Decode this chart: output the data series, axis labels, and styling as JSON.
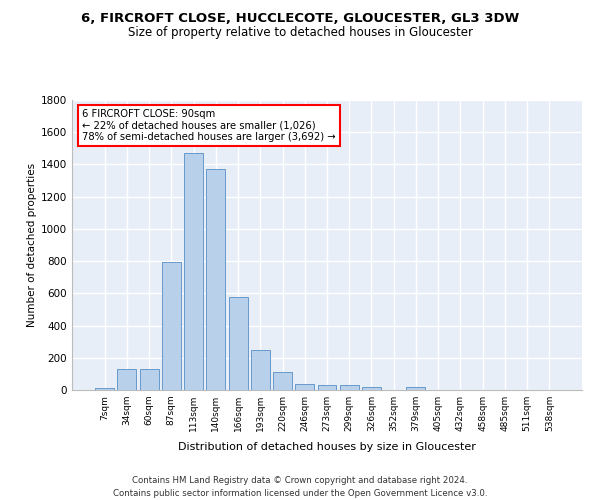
{
  "title1": "6, FIRCROFT CLOSE, HUCCLECOTE, GLOUCESTER, GL3 3DW",
  "title2": "Size of property relative to detached houses in Gloucester",
  "xlabel": "Distribution of detached houses by size in Gloucester",
  "ylabel": "Number of detached properties",
  "categories": [
    "7sqm",
    "34sqm",
    "60sqm",
    "87sqm",
    "113sqm",
    "140sqm",
    "166sqm",
    "193sqm",
    "220sqm",
    "246sqm",
    "273sqm",
    "299sqm",
    "326sqm",
    "352sqm",
    "379sqm",
    "405sqm",
    "432sqm",
    "458sqm",
    "485sqm",
    "511sqm",
    "538sqm"
  ],
  "values": [
    10,
    130,
    130,
    795,
    1470,
    1370,
    575,
    250,
    110,
    35,
    30,
    30,
    20,
    0,
    20,
    0,
    0,
    0,
    0,
    0,
    0
  ],
  "bar_color": "#b8d0ea",
  "bar_edge_color": "#6699cc",
  "ylim": [
    0,
    1800
  ],
  "yticks": [
    0,
    200,
    400,
    600,
    800,
    1000,
    1200,
    1400,
    1600,
    1800
  ],
  "bg_color": "#e8eef8",
  "grid_color": "#ffffff",
  "annotation_line1": "6 FIRCROFT CLOSE: 90sqm",
  "annotation_line2": "← 22% of detached houses are smaller (1,026)",
  "annotation_line3": "78% of semi-detached houses are larger (3,692) →",
  "footer1": "Contains HM Land Registry data © Crown copyright and database right 2024.",
  "footer2": "Contains public sector information licensed under the Open Government Licence v3.0."
}
